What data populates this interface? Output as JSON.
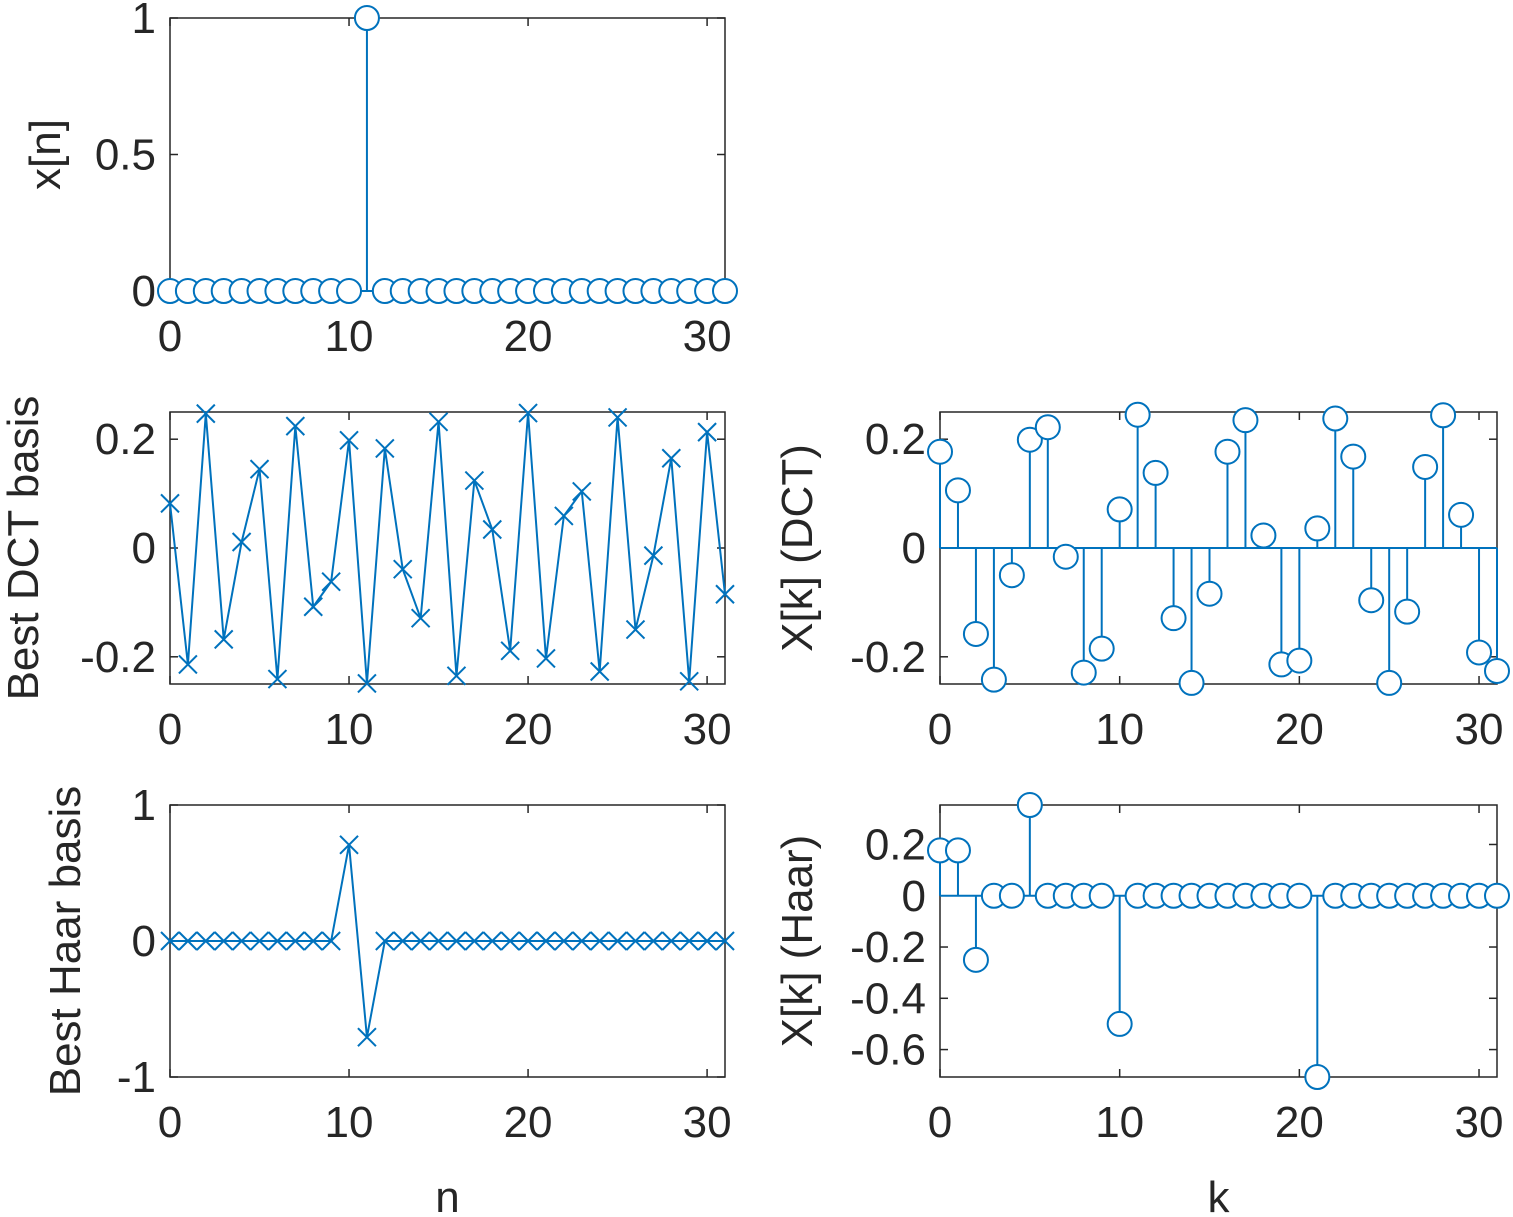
{
  "figure": {
    "series_color": "#0072BD",
    "axes_color": "#262626"
  },
  "chart_data": [
    {
      "id": "xn",
      "type": "stem",
      "marker": "circle",
      "title": "",
      "xlabel": "",
      "ylabel": "x[n]",
      "xlim": [
        0,
        31
      ],
      "ylim": [
        0,
        1
      ],
      "xticks": [
        0,
        10,
        20,
        30
      ],
      "xtick_labels": [
        "0",
        "10",
        "20",
        "30"
      ],
      "yticks": [
        0,
        0.5,
        1
      ],
      "ytick_labels": [
        "0",
        "0.5",
        "1"
      ],
      "grid": false,
      "x": [
        0,
        1,
        2,
        3,
        4,
        5,
        6,
        7,
        8,
        9,
        10,
        11,
        12,
        13,
        14,
        15,
        16,
        17,
        18,
        19,
        20,
        21,
        22,
        23,
        24,
        25,
        26,
        27,
        28,
        29,
        30,
        31
      ],
      "values": [
        0,
        0,
        0,
        0,
        0,
        0,
        0,
        0,
        0,
        0,
        0,
        1,
        0,
        0,
        0,
        0,
        0,
        0,
        0,
        0,
        0,
        0,
        0,
        0,
        0,
        0,
        0,
        0,
        0,
        0,
        0,
        0
      ]
    },
    {
      "id": "dct_basis",
      "type": "line",
      "marker": "x",
      "title": "",
      "xlabel": "",
      "ylabel": "Best DCT basis",
      "xlim": [
        0,
        31
      ],
      "ylim": [
        -0.25,
        0.25
      ],
      "xticks": [
        0,
        10,
        20,
        30
      ],
      "xtick_labels": [
        "0",
        "10",
        "20",
        "30"
      ],
      "yticks": [
        -0.2,
        0,
        0.2
      ],
      "ytick_labels": [
        "-0.2",
        "0",
        "0.2"
      ],
      "grid": false,
      "x": [
        0,
        1,
        2,
        3,
        4,
        5,
        6,
        7,
        8,
        9,
        10,
        11,
        12,
        13,
        14,
        15,
        16,
        17,
        18,
        19,
        20,
        21,
        22,
        23,
        24,
        25,
        26,
        27,
        28,
        29,
        30,
        31
      ],
      "values": [
        0.082,
        -0.214,
        0.247,
        -0.168,
        0.011,
        0.145,
        -0.241,
        0.224,
        -0.108,
        -0.062,
        0.198,
        -0.249,
        0.183,
        -0.039,
        -0.129,
        0.232,
        -0.235,
        0.124,
        0.034,
        -0.189,
        0.248,
        -0.203,
        0.059,
        0.104,
        -0.227,
        0.24,
        -0.15,
        -0.014,
        0.165,
        -0.245,
        0.213,
        -0.085
      ]
    },
    {
      "id": "dct_coeffs",
      "type": "stem",
      "marker": "circle",
      "title": "",
      "xlabel": "",
      "ylabel": "X[k] (DCT)",
      "xlim": [
        0,
        31
      ],
      "ylim": [
        -0.25,
        0.25
      ],
      "xticks": [
        0,
        10,
        20,
        30
      ],
      "xtick_labels": [
        "0",
        "10",
        "20",
        "30"
      ],
      "yticks": [
        -0.2,
        0,
        0.2
      ],
      "ytick_labels": [
        "-0.2",
        "0",
        "0.2"
      ],
      "grid": false,
      "x": [
        0,
        1,
        2,
        3,
        4,
        5,
        6,
        7,
        8,
        9,
        10,
        11,
        12,
        13,
        14,
        15,
        16,
        17,
        18,
        19,
        20,
        21,
        22,
        23,
        24,
        25,
        26,
        27,
        28,
        29,
        30,
        31
      ],
      "values": [
        0.177,
        0.106,
        -0.158,
        -0.242,
        -0.05,
        0.199,
        0.222,
        -0.016,
        -0.229,
        -0.185,
        0.071,
        0.245,
        0.138,
        -0.129,
        -0.248,
        -0.084,
        0.177,
        0.235,
        0.023,
        -0.214,
        -0.207,
        0.036,
        0.238,
        0.168,
        -0.096,
        -0.248,
        -0.117,
        0.149,
        0.244,
        0.061,
        -0.192,
        -0.226
      ]
    },
    {
      "id": "haar_basis",
      "type": "line",
      "marker": "x",
      "title": "",
      "xlabel": "n",
      "ylabel": "Best Haar basis",
      "xlim": [
        0,
        31
      ],
      "ylim": [
        -1,
        1
      ],
      "xticks": [
        0,
        10,
        20,
        30
      ],
      "xtick_labels": [
        "0",
        "10",
        "20",
        "30"
      ],
      "yticks": [
        -1,
        0,
        1
      ],
      "ytick_labels": [
        "-1",
        "0",
        "1"
      ],
      "grid": false,
      "x": [
        0,
        1,
        2,
        3,
        4,
        5,
        6,
        7,
        8,
        9,
        10,
        11,
        12,
        13,
        14,
        15,
        16,
        17,
        18,
        19,
        20,
        21,
        22,
        23,
        24,
        25,
        26,
        27,
        28,
        29,
        30,
        31
      ],
      "values": [
        0,
        0,
        0,
        0,
        0,
        0,
        0,
        0,
        0,
        0,
        0.707,
        -0.707,
        0,
        0,
        0,
        0,
        0,
        0,
        0,
        0,
        0,
        0,
        0,
        0,
        0,
        0,
        0,
        0,
        0,
        0,
        0,
        0
      ]
    },
    {
      "id": "haar_coeffs",
      "type": "stem",
      "marker": "circle",
      "title": "",
      "xlabel": "k",
      "ylabel": "X[k] (Haar)",
      "xlim": [
        0,
        31
      ],
      "ylim": [
        -0.707,
        0.354
      ],
      "xticks": [
        0,
        10,
        20,
        30
      ],
      "xtick_labels": [
        "0",
        "10",
        "20",
        "30"
      ],
      "yticks": [
        -0.6,
        -0.4,
        -0.2,
        0,
        0.2
      ],
      "ytick_labels": [
        "-0.6",
        "-0.4",
        "-0.2",
        "0",
        "0.2"
      ],
      "grid": false,
      "x": [
        0,
        1,
        2,
        3,
        4,
        5,
        6,
        7,
        8,
        9,
        10,
        11,
        12,
        13,
        14,
        15,
        16,
        17,
        18,
        19,
        20,
        21,
        22,
        23,
        24,
        25,
        26,
        27,
        28,
        29,
        30,
        31
      ],
      "values": [
        0.177,
        0.177,
        -0.25,
        0,
        0,
        0.354,
        0,
        0,
        0,
        0,
        -0.5,
        0,
        0,
        0,
        0,
        0,
        0,
        0,
        0,
        0,
        0,
        -0.707,
        0,
        0,
        0,
        0,
        0,
        0,
        0,
        0,
        0,
        0
      ]
    }
  ]
}
